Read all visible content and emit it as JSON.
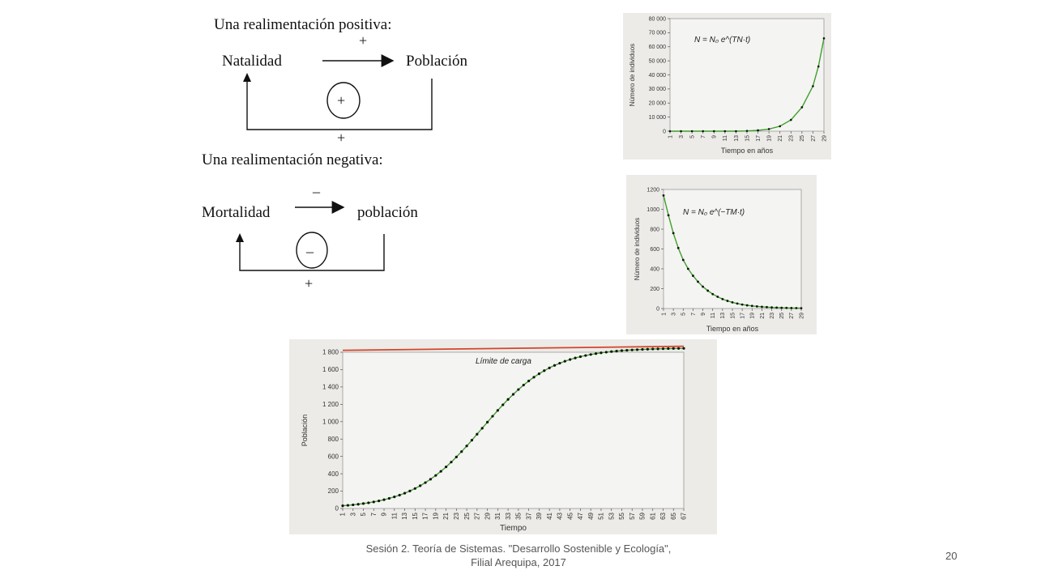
{
  "diagrams": {
    "positive": {
      "title": "Una realimentación positiva:",
      "from": "Natalidad",
      "to": "Población",
      "arrow_sign": "+",
      "loop_sign": "+",
      "bottom_sign": "+"
    },
    "negative": {
      "title": "Una realimentación negativa:",
      "from": "Mortalidad",
      "to": "población",
      "arrow_sign": "_",
      "loop_sign": "_",
      "bottom_sign": "+"
    }
  },
  "chart_data": [
    {
      "type": "line",
      "annotation": "N = N₀ e^(TN·t)",
      "xlabel": "Tiempo en años",
      "ylabel": "Número de individuos",
      "x_ticks": [
        "1",
        "3",
        "5",
        "7",
        "9",
        "11",
        "13",
        "15",
        "17",
        "19",
        "21",
        "23",
        "25",
        "27",
        "29"
      ],
      "y_ticks": [
        "0",
        "10 000",
        "20 000",
        "30 000",
        "40 000",
        "50 000",
        "60 000",
        "70 000",
        "80 000"
      ],
      "ylim": [
        0,
        80000
      ],
      "xlim": [
        1,
        29
      ],
      "x": [
        1,
        3,
        5,
        7,
        9,
        11,
        13,
        15,
        17,
        19,
        21,
        23,
        25,
        27,
        28,
        29
      ],
      "y": [
        0,
        0,
        0,
        0,
        0,
        0,
        0,
        200,
        600,
        1500,
        3500,
        8000,
        17000,
        32000,
        46000,
        66000
      ],
      "line_color": "#3f9f2a",
      "grid": false
    },
    {
      "type": "line",
      "annotation": "N = N₀ e^(−TM·t)",
      "xlabel": "Tiempo en años",
      "ylabel": "Número de individuos",
      "x_ticks": [
        "1",
        "3",
        "5",
        "7",
        "9",
        "11",
        "13",
        "15",
        "17",
        "19",
        "21",
        "23",
        "25",
        "27",
        "29"
      ],
      "y_ticks": [
        "0",
        "200",
        "400",
        "600",
        "800",
        "1000",
        "1200"
      ],
      "ylim": [
        0,
        1200
      ],
      "xlim": [
        1,
        29
      ],
      "x": [
        1,
        2,
        3,
        4,
        5,
        6,
        7,
        8,
        9,
        10,
        11,
        12,
        13,
        14,
        15,
        16,
        17,
        18,
        19,
        20,
        21,
        22,
        23,
        24,
        25,
        26,
        27,
        28,
        29
      ],
      "y": [
        1140,
        940,
        760,
        610,
        490,
        400,
        330,
        270,
        220,
        180,
        145,
        118,
        95,
        77,
        62,
        50,
        40,
        32,
        26,
        21,
        17,
        14,
        11,
        9,
        7,
        6,
        5,
        4,
        3
      ],
      "line_color": "#3f9f2a",
      "grid": false
    },
    {
      "type": "line",
      "xlabel": "Tiempo",
      "ylabel": "Población",
      "annotation": "Límite de carga",
      "carrying_capacity": 1850,
      "x_ticks": [
        "1",
        "3",
        "5",
        "7",
        "9",
        "11",
        "13",
        "15",
        "17",
        "19",
        "21",
        "23",
        "25",
        "27",
        "29",
        "31",
        "33",
        "35",
        "37",
        "39",
        "41",
        "43",
        "45",
        "47",
        "49",
        "51",
        "53",
        "55",
        "57",
        "59",
        "61",
        "63",
        "65",
        "67"
      ],
      "y_ticks": [
        "0",
        "200",
        "400",
        "600",
        "800",
        "1 000",
        "1 200",
        "1 400",
        "1 600",
        "1 800"
      ],
      "ylim": [
        0,
        1800
      ],
      "xlim": [
        1,
        67
      ],
      "logistic": {
        "K": 1850,
        "r": 0.15,
        "midpoint": 28
      },
      "line_color": "#3f9f2a",
      "limit_color": "#d4452a",
      "grid": false
    }
  ],
  "footer": {
    "line1": "Sesión 2. Teoría de Sistemas. \"Desarrollo Sostenible y Ecología\",",
    "line2": "Filial Arequipa, 2017",
    "page_number": "20"
  }
}
